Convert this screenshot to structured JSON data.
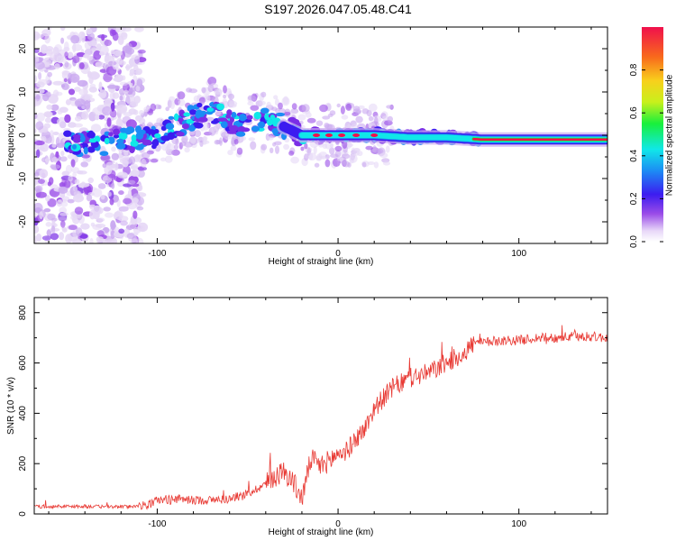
{
  "title": "S197.2026.047.05.48.C41",
  "chart_data": [
    {
      "type": "heatmap",
      "xlabel": "Height of straight line (km)",
      "ylabel": "Frequency (Hz)",
      "xlim": [
        -168,
        149
      ],
      "ylim": [
        -25,
        25
      ],
      "xticks": [
        -100,
        0,
        100
      ],
      "xtick_labels": [
        "-100",
        "0",
        "100"
      ],
      "yticks": [
        20,
        10,
        0,
        -10,
        -20
      ],
      "ytick_labels": [
        "20",
        "10",
        "0",
        "-10",
        "-20"
      ],
      "ridge": {
        "x": [
          -165,
          -150,
          -140,
          -130,
          -120,
          -110,
          -100,
          -90,
          -80,
          -70,
          -60,
          -50,
          -40,
          -30,
          -20,
          -10,
          0,
          20,
          40,
          60,
          80,
          100,
          120,
          149
        ],
        "freq": [
          0,
          -2,
          -2,
          -2,
          -1,
          -1,
          0,
          2,
          4,
          6,
          3,
          2,
          4,
          2,
          0,
          0,
          0,
          0,
          -0.5,
          -0.5,
          -1,
          -1,
          -1,
          -1
        ]
      },
      "colorbar": {
        "label": "Normalized spectral amplitude",
        "range": [
          0,
          1
        ],
        "ticks": [
          0.0,
          0.2,
          0.4,
          0.6,
          0.8
        ],
        "tick_labels": [
          "0.0",
          "0.2",
          "0.4",
          "0.6",
          "0.8"
        ]
      }
    },
    {
      "type": "line",
      "xlabel": "Height of straight line (km)",
      "ylabel": "SNR (10 * v/v)",
      "xlim": [
        -168,
        149
      ],
      "ylim": [
        0,
        860
      ],
      "xticks": [
        -100,
        0,
        100
      ],
      "xtick_labels": [
        "-100",
        "0",
        "100"
      ],
      "yticks": [
        0,
        200,
        400,
        600,
        800
      ],
      "ytick_labels": [
        "0",
        "200",
        "400",
        "600",
        "800"
      ],
      "series": [
        {
          "name": "SNR",
          "color": "#e83a34",
          "x": [
            -168,
            -140,
            -120,
            -105,
            -100,
            -90,
            -80,
            -70,
            -60,
            -50,
            -40,
            -35,
            -30,
            -25,
            -20,
            -15,
            -10,
            -5,
            0,
            5,
            10,
            15,
            20,
            25,
            30,
            40,
            50,
            60,
            70,
            75,
            80,
            90,
            100,
            110,
            120,
            130,
            140,
            149
          ],
          "y": [
            30,
            30,
            28,
            35,
            55,
            60,
            55,
            55,
            60,
            80,
            120,
            150,
            170,
            130,
            60,
            220,
            190,
            210,
            240,
            250,
            300,
            340,
            420,
            460,
            500,
            540,
            560,
            600,
            640,
            680,
            680,
            690,
            690,
            700,
            700,
            705,
            705,
            700
          ]
        }
      ]
    }
  ],
  "colors": {
    "line": "#e83a34",
    "axis": "#000000",
    "ridge_hot": "#e8134a"
  }
}
